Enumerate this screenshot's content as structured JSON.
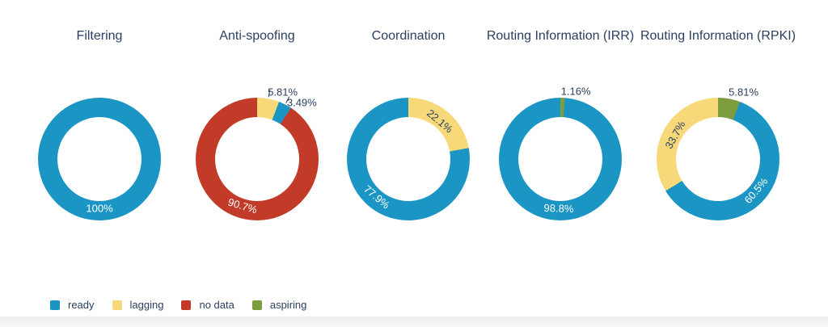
{
  "page": {
    "background": "#ffffff"
  },
  "categories": {
    "ready": {
      "color": "#1B96C4",
      "text_color": "#ffffff"
    },
    "lagging": {
      "color": "#F8D979",
      "text_color": "#2A3F5F"
    },
    "no data": {
      "color": "#C23B28",
      "text_color": "#ffffff"
    },
    "aspiring": {
      "color": "#7D9C3E",
      "text_color": "#ffffff"
    }
  },
  "legend": {
    "items": [
      {
        "key": "ready",
        "label": "ready",
        "color": "#1B96C4"
      },
      {
        "key": "lagging",
        "label": "lagging",
        "color": "#F8D979"
      },
      {
        "key": "no data",
        "label": "no data",
        "color": "#C23B28"
      },
      {
        "key": "aspiring",
        "label": "aspiring",
        "color": "#7D9C3E"
      }
    ]
  },
  "chart_data": [
    {
      "type": "pie",
      "subtype": "donut",
      "title": "Filtering",
      "slices": [
        {
          "category": "ready",
          "value": 100,
          "label": "100%",
          "label_placement": "inside",
          "callout": false
        }
      ]
    },
    {
      "type": "pie",
      "subtype": "donut",
      "title": "Anti-spoofing",
      "slices": [
        {
          "category": "lagging",
          "value": 5.81,
          "label": "5.81%",
          "label_placement": "outside",
          "callout": true
        },
        {
          "category": "ready",
          "value": 3.49,
          "label": "3.49%",
          "label_placement": "outside",
          "callout": true
        },
        {
          "category": "no data",
          "value": 90.7,
          "label": "90.7%",
          "label_placement": "inside",
          "callout": false
        }
      ]
    },
    {
      "type": "pie",
      "subtype": "donut",
      "title": "Coordination",
      "slices": [
        {
          "category": "lagging",
          "value": 22.1,
          "label": "22.1%",
          "label_placement": "inside",
          "callout": false
        },
        {
          "category": "ready",
          "value": 77.9,
          "label": "77.9%",
          "label_placement": "inside",
          "callout": false
        }
      ]
    },
    {
      "type": "pie",
      "subtype": "donut",
      "title": "Routing Information (IRR)",
      "slices": [
        {
          "category": "aspiring",
          "value": 1.16,
          "label": "1.16%",
          "label_placement": "outside",
          "callout": false
        },
        {
          "category": "ready",
          "value": 98.8,
          "label": "98.8%",
          "label_placement": "inside",
          "callout": false
        }
      ]
    },
    {
      "type": "pie",
      "subtype": "donut",
      "title": "Routing Information (RPKI)",
      "slices": [
        {
          "category": "aspiring",
          "value": 5.81,
          "label": "5.81%",
          "label_placement": "outside",
          "callout": false
        },
        {
          "category": "ready",
          "value": 60.5,
          "label": "60.5%",
          "label_placement": "inside",
          "callout": false
        },
        {
          "category": "lagging",
          "value": 33.7,
          "label": "33.7%",
          "label_placement": "inside",
          "callout": false
        }
      ]
    }
  ]
}
